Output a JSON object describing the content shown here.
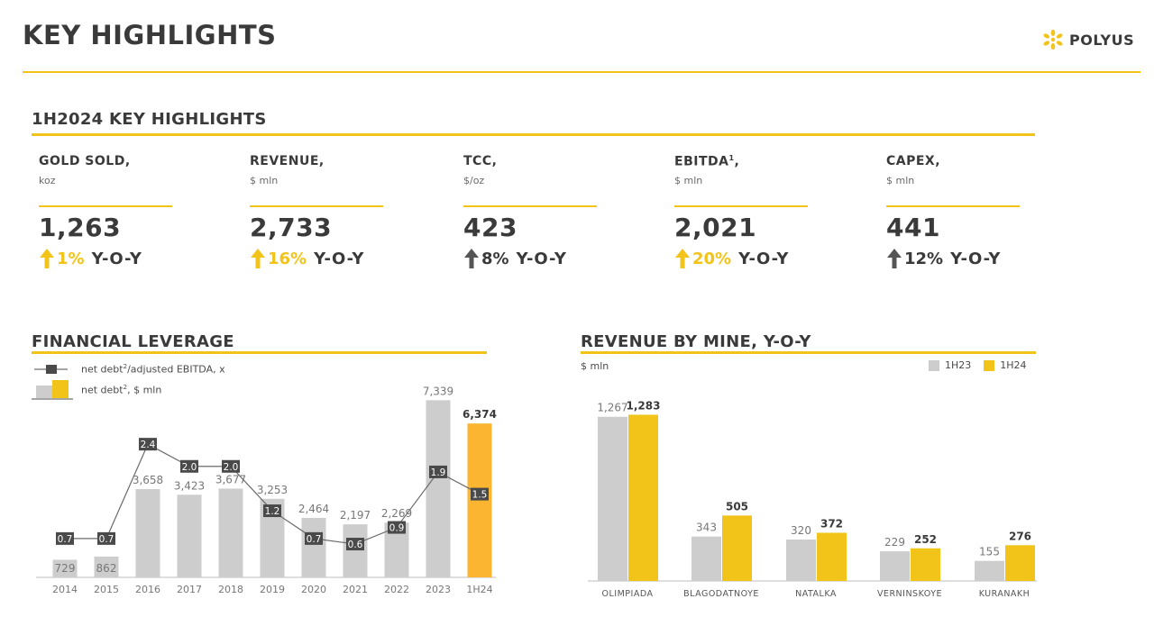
{
  "header": {
    "title": "KEY HIGHLIGHTS",
    "logo_text": "POLYUS",
    "colors": {
      "accent": "#f2c318",
      "gray_bar": "#cdcdcd",
      "dark": "#4a4a4a",
      "orange_bar": "#fbb531"
    }
  },
  "highlights": {
    "title": "1H2024 KEY HIGHLIGHTS",
    "kpis": [
      {
        "label": "GOLD SOLD,",
        "sup": "",
        "unit": "koz",
        "value": "1,263",
        "change": "1%",
        "direction": "up",
        "color": "#f2c318",
        "yoy": "Y-O-Y"
      },
      {
        "label": "REVENUE,",
        "sup": "",
        "unit": "$ mln",
        "value": "2,733",
        "change": "16%",
        "direction": "up",
        "color": "#f2c318",
        "yoy": "Y-O-Y"
      },
      {
        "label": "TCC,",
        "sup": "",
        "unit": "$/oz",
        "value": "423",
        "change": "8%",
        "direction": "up",
        "color": "#555555",
        "yoy": "Y-O-Y"
      },
      {
        "label": "EBITDA",
        "sup": "1",
        "unit": "$ mln",
        "value": "2,021",
        "change": "20%",
        "direction": "up",
        "color": "#f2c318",
        "yoy": "Y-O-Y"
      },
      {
        "label": "CAPEX,",
        "sup": "",
        "unit": "$ mln",
        "value": "441",
        "change": "12%",
        "direction": "up",
        "color": "#555555",
        "yoy": "Y-O-Y"
      }
    ]
  },
  "chart_data": [
    {
      "type": "bar",
      "title": "FINANCIAL LEVERAGE",
      "legend": {
        "line_label": "net debt",
        "line_sup": "2",
        "line_suffix": "/adjusted EBITDA, x",
        "bar_label": "net debt",
        "bar_sup": "2",
        "bar_suffix": ", $ mln"
      },
      "categories": [
        "2014",
        "2015",
        "2016",
        "2017",
        "2018",
        "2019",
        "2020",
        "2021",
        "2022",
        "2023",
        "1H24"
      ],
      "series": [
        {
          "name": "net debt, $ mln",
          "kind": "bar",
          "values": [
            729,
            862,
            3658,
            3423,
            3677,
            3253,
            2464,
            2197,
            2269,
            7339,
            6374
          ],
          "labels": [
            "729",
            "862",
            "3,658",
            "3,423",
            "3,677",
            "3,253",
            "2,464",
            "2,197",
            "2,269",
            "7,339",
            "6,374"
          ]
        },
        {
          "name": "net debt/adjusted EBITDA, x",
          "kind": "line",
          "values": [
            0.7,
            0.7,
            2.4,
            2.0,
            2.0,
            1.2,
            0.7,
            0.6,
            0.9,
            1.9,
            1.5
          ],
          "labels": [
            "0.7",
            "0.7",
            "2.4",
            "2.0",
            "2.0",
            "1.2",
            "0.7",
            "0.6",
            "0.9",
            "1.9",
            "1.5"
          ]
        }
      ],
      "highlight_category": "1H24",
      "ylim_bars": [
        0,
        7500
      ],
      "ylim_line": [
        0,
        3.1
      ]
    },
    {
      "type": "bar",
      "title": "REVENUE BY MINE, Y-O-Y",
      "unit": "$ mln",
      "legend": [
        "1H23",
        "1H24"
      ],
      "categories": [
        "OLIMPIADA",
        "BLAGODATNOYE",
        "NATALKA",
        "VERNINSKOYE",
        "KURANAKH"
      ],
      "series": [
        {
          "name": "1H23",
          "values": [
            1267,
            343,
            320,
            229,
            155
          ],
          "labels": [
            "1,267",
            "343",
            "320",
            "229",
            "155"
          ]
        },
        {
          "name": "1H24",
          "values": [
            1283,
            505,
            372,
            252,
            276
          ],
          "labels": [
            "1,283",
            "505",
            "372",
            "252",
            "276"
          ]
        }
      ],
      "ylim": [
        0,
        1300
      ]
    }
  ]
}
